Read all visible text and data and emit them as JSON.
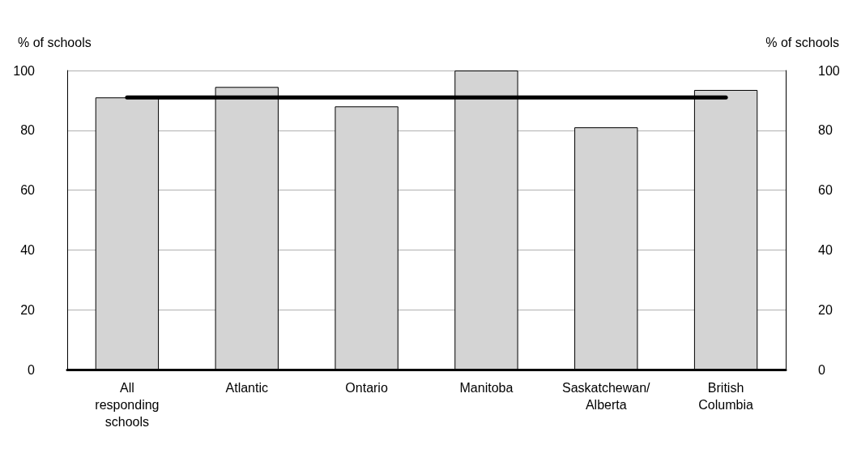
{
  "chart_data": {
    "type": "bar",
    "ylabel": "% of schools",
    "y2label": "% of schools",
    "categories": [
      "All\nresponding\nschools",
      "Atlantic",
      "Ontario",
      "Manitoba",
      "Saskatchewan/\nAlberta",
      "British\nColumbia"
    ],
    "series": [
      {
        "color": "#d4d4d4",
        "values": [
          91,
          94.5,
          88,
          100,
          81,
          93.5
        ]
      },
      {
        "type": "line",
        "color": "#000000",
        "values": [
          91,
          91,
          91,
          91,
          91,
          91
        ]
      }
    ],
    "ylim": [
      0,
      100
    ],
    "yticks": [
      0,
      20,
      40,
      60,
      80,
      100
    ],
    "y2lim": [
      0,
      100
    ],
    "y2ticks": [
      0,
      20,
      40,
      60,
      80,
      100
    ],
    "grid": "y",
    "marker": "none",
    "line_style": "solid"
  }
}
